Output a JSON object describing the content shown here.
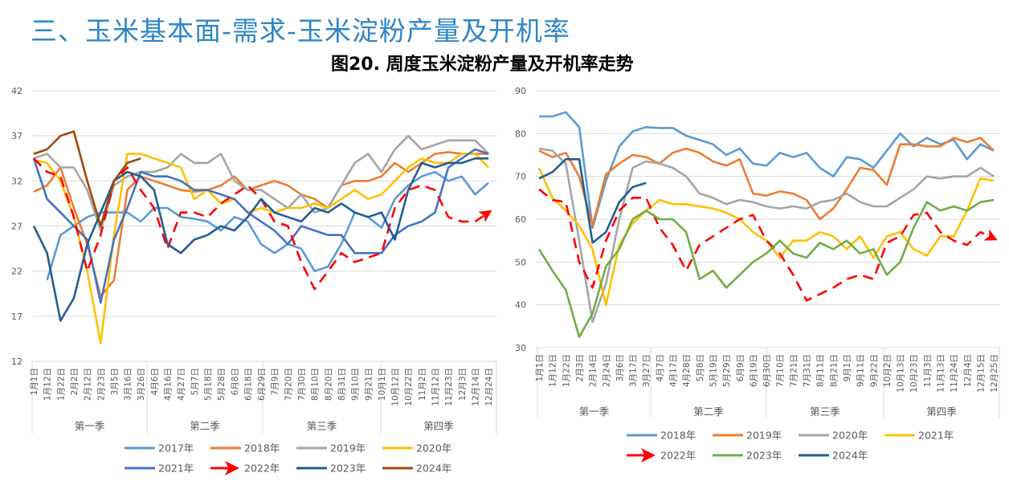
{
  "header": {
    "title": "三、玉米基本面-需求-玉米淀粉产量及开机率",
    "figure_title": "图20. 周度玉米淀粉产量及开机率走势"
  },
  "chart_data": [
    {
      "type": "line",
      "title": "",
      "ylim": [
        12,
        42
      ],
      "yticks": [
        12,
        17,
        22,
        27,
        32,
        37,
        42
      ],
      "grid": true,
      "legend_placement": "bottom",
      "categories": [
        "1月1日",
        "1月12日",
        "1月22日",
        "2月2日",
        "2月12日",
        "2月23日",
        "3月5日",
        "3月16日",
        "3月26日",
        "4月6日",
        "4月16日",
        "4月27日",
        "5月7日",
        "5月18日",
        "5月28日",
        "6月8日",
        "6月18日",
        "6月29日",
        "7月9日",
        "7月20日",
        "7月30日",
        "8月10日",
        "8月20日",
        "8月31日",
        "9月10日",
        "9月21日",
        "10月1日",
        "10月12日",
        "10月22日",
        "11月2日",
        "11月12日",
        "11月23日",
        "12月3日",
        "12月14日",
        "12月24日"
      ],
      "quarters": [
        "第一季",
        "第二季",
        "第三季",
        "第四季"
      ],
      "series": [
        {
          "name": "2017年",
          "color": "#5b9bd5",
          "dashed": false,
          "values": [
            null,
            21,
            26,
            27,
            28,
            28.5,
            28.5,
            28.5,
            27.5,
            29,
            29,
            28,
            27.8,
            27.5,
            26.5,
            28,
            27.5,
            25,
            24,
            25,
            24.5,
            22,
            22.5,
            25,
            28.5,
            28,
            26.8,
            30,
            31.5,
            32.5,
            33,
            32,
            32.5,
            30.5,
            31.8
          ]
        },
        {
          "name": "2018年",
          "color": "#ed7d31",
          "dashed": false,
          "values": [
            30.8,
            31.5,
            33.5,
            29,
            25,
            19.2,
            21,
            31,
            32.5,
            32,
            31.5,
            31,
            30.8,
            31,
            31.5,
            32.5,
            31,
            31.5,
            32,
            31.5,
            30.5,
            30,
            29,
            31.5,
            32,
            32,
            32.5,
            34,
            33,
            34,
            35,
            35.2,
            35,
            35,
            35
          ]
        },
        {
          "name": "2019年",
          "color": "#a5a5a5",
          "dashed": false,
          "values": [
            34.5,
            35,
            33.5,
            33.5,
            31,
            26.5,
            31.5,
            32.5,
            33,
            33,
            33.5,
            35,
            34,
            34,
            35,
            32,
            31,
            31,
            30,
            29,
            30.5,
            28.5,
            29,
            31.5,
            34,
            35,
            33,
            35.5,
            37,
            35.5,
            36,
            36.5,
            36.5,
            36.5,
            35
          ]
        },
        {
          "name": "2020年",
          "color": "#ffc000",
          "dashed": false,
          "values": [
            34.3,
            34,
            32,
            28,
            22,
            14,
            26,
            35,
            35,
            34.5,
            34,
            33.5,
            30,
            31,
            29.5,
            30,
            28.5,
            29,
            28.5,
            29,
            29,
            29.5,
            29,
            30,
            31,
            30,
            30.5,
            32,
            33.5,
            34.5,
            34,
            34,
            35,
            35,
            33.5
          ]
        },
        {
          "name": "2021年",
          "color": "#4472c4",
          "dashed": false,
          "values": [
            34.5,
            30,
            28.5,
            27,
            25.5,
            18.5,
            25.5,
            29,
            33,
            32.5,
            32.5,
            32,
            31,
            31,
            30.5,
            30,
            28.5,
            27.5,
            26.5,
            25,
            27,
            26.5,
            26,
            26,
            24,
            24,
            24,
            26,
            27,
            27.5,
            28.5,
            33.5,
            34.5,
            35.5,
            35
          ]
        },
        {
          "name": "2022年",
          "color": "#ff0000",
          "dashed": true,
          "values": [
            34.5,
            33,
            32.5,
            28,
            22,
            26,
            32,
            33.5,
            31,
            29,
            24.5,
            28.5,
            28.5,
            28,
            29.5,
            30.5,
            31.5,
            30,
            27.5,
            27,
            23,
            20,
            22,
            24,
            23,
            23.5,
            24,
            29,
            31,
            31.5,
            31,
            28,
            27.5,
            27.5,
            28.5
          ]
        },
        {
          "name": "2023年",
          "color": "#255e91",
          "dashed": false,
          "values": [
            27,
            24,
            16.5,
            19,
            25,
            28.5,
            32,
            33,
            32.5,
            31,
            25,
            24,
            25.5,
            26,
            27,
            26.5,
            28,
            30,
            28.5,
            28,
            27.5,
            29,
            28.5,
            29.5,
            28.5,
            28,
            28.5,
            25.5,
            31,
            34,
            33.5,
            34,
            34,
            34.5,
            34.5
          ]
        },
        {
          "name": "2024年",
          "color": "#9e480e",
          "dashed": false,
          "values": [
            35,
            35.5,
            37,
            37.5,
            32,
            27,
            32,
            34,
            34.5,
            null,
            null,
            null,
            null,
            null,
            null,
            null,
            null,
            null,
            null,
            null,
            null,
            null,
            null,
            null,
            null,
            null,
            null,
            null,
            null,
            null,
            null,
            null,
            null,
            null,
            null
          ]
        }
      ]
    },
    {
      "type": "line",
      "title": "",
      "ylim": [
        30,
        90
      ],
      "yticks": [
        30,
        40,
        50,
        60,
        70,
        80,
        90
      ],
      "grid": true,
      "legend_placement": "bottom",
      "categories": [
        "1月1日",
        "1月12日",
        "1月22日",
        "2月3日",
        "2月14日",
        "2月24日",
        "3月6日",
        "3月17日",
        "3月27日",
        "4月7日",
        "4月17日",
        "4月28日",
        "5月8日",
        "5月19日",
        "5月29日",
        "6月9日",
        "6月19日",
        "6月30日",
        "7月10日",
        "7月21日",
        "7月31日",
        "8月11日",
        "8月21日",
        "9月1日",
        "9月11日",
        "9月22日",
        "10月2日",
        "10月13日",
        "10月23日",
        "11月3日",
        "11月13日",
        "11月24日",
        "12月4日",
        "12月15日",
        "12月25日"
      ],
      "quarters": [
        "第一季",
        "第二季",
        "第三季",
        "第四季"
      ],
      "series": [
        {
          "name": "2018年",
          "color": "#5b9bd5",
          "dashed": false,
          "values": [
            84,
            84,
            85,
            81.5,
            58,
            69,
            77,
            80.5,
            81.5,
            81.3,
            81.3,
            79.5,
            78.5,
            77.5,
            75,
            76.5,
            73,
            72.5,
            75.5,
            74.5,
            75.5,
            72,
            70,
            74.5,
            74,
            72,
            76,
            80,
            77,
            79,
            77.5,
            78.5,
            74,
            77.5,
            76
          ]
        },
        {
          "name": "2019年",
          "color": "#ed7d31",
          "dashed": false,
          "values": [
            76,
            74.5,
            75.5,
            70,
            58.5,
            70.5,
            73,
            75,
            74.5,
            73,
            75.5,
            76.5,
            75.5,
            73.5,
            72.5,
            74,
            66,
            65.5,
            66.5,
            66,
            64.5,
            60,
            62.5,
            67,
            72,
            71.5,
            68,
            77.5,
            77.5,
            77,
            77,
            79,
            78,
            79,
            76
          ]
        },
        {
          "name": "2020年",
          "color": "#a5a5a5",
          "dashed": false,
          "values": [
            76.5,
            76,
            73,
            55,
            36,
            45,
            60,
            72,
            73.5,
            73,
            72,
            70,
            66,
            65,
            63.5,
            64.5,
            64,
            63,
            62.5,
            63,
            62.5,
            64,
            64.5,
            66,
            64,
            63,
            63,
            65,
            67,
            70,
            69.5,
            70,
            70,
            72,
            70
          ]
        },
        {
          "name": "2021年",
          "color": "#ffc000",
          "dashed": false,
          "values": [
            72,
            65,
            62,
            58.5,
            53,
            40,
            54,
            59,
            62,
            64.5,
            63.5,
            63.5,
            63,
            62.5,
            61.5,
            60,
            57,
            55,
            51,
            55,
            55,
            57,
            56,
            53,
            56,
            51,
            56,
            57,
            53,
            51.5,
            56,
            56,
            62,
            69.5,
            69
          ]
        },
        {
          "name": "2022年",
          "color": "#ff0000",
          "dashed": true,
          "values": [
            67,
            64.5,
            64,
            50,
            44,
            55,
            62,
            65,
            65,
            58,
            54,
            48,
            54,
            56,
            58,
            60,
            61,
            55,
            52,
            47,
            41,
            42.5,
            44,
            46,
            47,
            46,
            54.5,
            56,
            61,
            61.5,
            57,
            55,
            54,
            57,
            55.5
          ]
        },
        {
          "name": "2023年",
          "color": "#70ad47",
          "dashed": false,
          "values": [
            53,
            48,
            43.5,
            32.5,
            38,
            49,
            53,
            60,
            62,
            60,
            60,
            57,
            46,
            48,
            44,
            47,
            50,
            52,
            55,
            52,
            51,
            54.5,
            53,
            55,
            52,
            53,
            47,
            50,
            58,
            64,
            62,
            63,
            62,
            64,
            64.5
          ]
        },
        {
          "name": "2024年",
          "color": "#255e91",
          "dashed": false,
          "values": [
            69.5,
            71,
            74,
            74,
            54.5,
            57,
            64,
            67.5,
            68.5,
            null,
            null,
            null,
            null,
            null,
            null,
            null,
            null,
            null,
            null,
            null,
            null,
            null,
            null,
            null,
            null,
            null,
            null,
            null,
            null,
            null,
            null,
            null,
            null,
            null,
            null
          ]
        }
      ]
    }
  ]
}
